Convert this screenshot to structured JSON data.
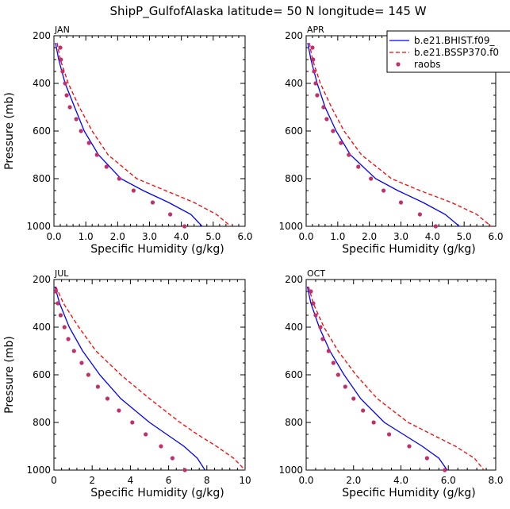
{
  "title": "ShipP_GulfofAlaska  latitude= 50 N longitude= 145 W",
  "legend": {
    "entries": [
      {
        "label": "b.e21.BHIST.f09_",
        "color": "#0000ff",
        "style": "solid"
      },
      {
        "label": "b.e21.BSSP370.f0",
        "color": "#ff0000",
        "style": "dashed"
      },
      {
        "label": "raobs",
        "color": "#c0306a",
        "style": "dot"
      }
    ]
  },
  "chart_data": [
    {
      "type": "line",
      "panel": "JAN",
      "xlabel": "Specific Humidity (g/kg)",
      "ylabel": "Pressure (mb)",
      "xlim": [
        0,
        6
      ],
      "ylim": [
        200,
        1000
      ],
      "y_inverted": true,
      "xticks": [
        "0.0",
        "1.0",
        "2.0",
        "3.0",
        "4.0",
        "5.0",
        "6.0"
      ],
      "xtick_values": [
        0,
        1,
        2,
        3,
        4,
        5,
        6
      ],
      "yticks": [
        "200",
        "400",
        "600",
        "800",
        "1000"
      ],
      "ytick_values": [
        200,
        400,
        600,
        800,
        1000
      ],
      "series": [
        {
          "name": "b.e21.BHIST.f09_",
          "p": [
            230,
            300,
            400,
            500,
            600,
            700,
            800,
            850,
            900,
            950,
            1000
          ],
          "q": [
            0.05,
            0.15,
            0.35,
            0.65,
            0.95,
            1.4,
            2.1,
            2.8,
            3.6,
            4.3,
            4.65
          ]
        },
        {
          "name": "b.e21.BSSP370.f0",
          "p": [
            230,
            300,
            400,
            500,
            600,
            700,
            800,
            850,
            900,
            950,
            1000
          ],
          "q": [
            0.1,
            0.2,
            0.45,
            0.8,
            1.2,
            1.7,
            2.6,
            3.5,
            4.4,
            5.1,
            5.55
          ]
        },
        {
          "name": "raobs",
          "p": [
            250,
            300,
            350,
            400,
            450,
            500,
            550,
            600,
            650,
            700,
            750,
            800,
            850,
            900,
            950,
            1000
          ],
          "q": [
            0.2,
            0.22,
            0.27,
            0.35,
            0.4,
            0.5,
            0.7,
            0.85,
            1.1,
            1.35,
            1.65,
            2.05,
            2.5,
            3.1,
            3.65,
            4.1
          ]
        }
      ]
    },
    {
      "type": "line",
      "panel": "APR",
      "xlabel": "Specific Humidity (g/kg)",
      "ylabel": "",
      "xlim": [
        0,
        6
      ],
      "ylim": [
        200,
        1000
      ],
      "y_inverted": true,
      "xticks": [
        "0.0",
        "1.0",
        "2.0",
        "3.0",
        "4.0",
        "5.0",
        "6.0"
      ],
      "xtick_values": [
        0,
        1,
        2,
        3,
        4,
        5,
        6
      ],
      "yticks": [
        "200",
        "400",
        "600",
        "800",
        "1000"
      ],
      "ytick_values": [
        200,
        400,
        600,
        800,
        1000
      ],
      "series": [
        {
          "name": "b.e21.BHIST.f09_",
          "p": [
            230,
            300,
            400,
            500,
            600,
            700,
            800,
            850,
            900,
            950,
            1000
          ],
          "q": [
            0.05,
            0.15,
            0.35,
            0.6,
            0.95,
            1.4,
            2.2,
            2.9,
            3.7,
            4.4,
            4.85
          ]
        },
        {
          "name": "b.e21.BSSP370.f0",
          "p": [
            230,
            300,
            400,
            500,
            600,
            700,
            800,
            850,
            900,
            950,
            1000
          ],
          "q": [
            0.1,
            0.2,
            0.45,
            0.8,
            1.2,
            1.75,
            2.7,
            3.6,
            4.6,
            5.4,
            5.85
          ]
        },
        {
          "name": "raobs",
          "p": [
            250,
            300,
            350,
            400,
            450,
            500,
            550,
            600,
            650,
            700,
            750,
            800,
            850,
            900,
            950,
            1000
          ],
          "q": [
            0.2,
            0.22,
            0.25,
            0.3,
            0.35,
            0.55,
            0.65,
            0.85,
            1.1,
            1.35,
            1.65,
            2.05,
            2.45,
            3.0,
            3.6,
            4.1
          ]
        }
      ]
    },
    {
      "type": "line",
      "panel": "JUL",
      "xlabel": "Specific Humidity (g/kg)",
      "ylabel": "Pressure (mb)",
      "xlim": [
        0,
        10
      ],
      "ylim": [
        200,
        1000
      ],
      "y_inverted": true,
      "xticks": [
        "0",
        "2",
        "4",
        "6",
        "8",
        "10"
      ],
      "xtick_values": [
        0,
        2,
        4,
        6,
        8,
        10
      ],
      "yticks": [
        "200",
        "400",
        "600",
        "800",
        "1000"
      ],
      "ytick_values": [
        200,
        400,
        600,
        800,
        1000
      ],
      "series": [
        {
          "name": "b.e21.BHIST.f09_",
          "p": [
            230,
            300,
            400,
            500,
            600,
            700,
            800,
            850,
            900,
            950,
            1000
          ],
          "q": [
            0.05,
            0.3,
            0.8,
            1.5,
            2.4,
            3.5,
            5.0,
            5.9,
            6.8,
            7.5,
            7.9
          ]
        },
        {
          "name": "b.e21.BSSP370.f0",
          "p": [
            230,
            300,
            400,
            500,
            600,
            700,
            800,
            850,
            900,
            950,
            1000
          ],
          "q": [
            0.1,
            0.5,
            1.3,
            2.2,
            3.5,
            5.0,
            6.6,
            7.5,
            8.5,
            9.4,
            10.0
          ]
        },
        {
          "name": "raobs",
          "p": [
            250,
            300,
            350,
            400,
            450,
            500,
            550,
            600,
            650,
            700,
            750,
            800,
            850,
            900,
            950,
            1000
          ],
          "q": [
            0.1,
            0.2,
            0.35,
            0.55,
            0.75,
            1.05,
            1.45,
            1.8,
            2.3,
            2.8,
            3.4,
            4.1,
            4.8,
            5.6,
            6.2,
            6.85
          ]
        }
      ]
    },
    {
      "type": "line",
      "panel": "OCT",
      "xlabel": "Specific Humidity (g/kg)",
      "ylabel": "",
      "xlim": [
        0,
        8
      ],
      "ylim": [
        200,
        1000
      ],
      "y_inverted": true,
      "xticks": [
        "0.0",
        "2.0",
        "4.0",
        "6.0",
        "8.0"
      ],
      "xtick_values": [
        0,
        2,
        4,
        6,
        8
      ],
      "yticks": [
        "200",
        "400",
        "600",
        "800",
        "1000"
      ],
      "ytick_values": [
        200,
        400,
        600,
        800,
        1000
      ],
      "series": [
        {
          "name": "b.e21.BHIST.f09_",
          "p": [
            230,
            300,
            400,
            500,
            600,
            700,
            800,
            850,
            900,
            950,
            1000
          ],
          "q": [
            0.05,
            0.2,
            0.55,
            1.0,
            1.6,
            2.3,
            3.3,
            4.1,
            4.9,
            5.6,
            5.95
          ]
        },
        {
          "name": "b.e21.BSSP370.f0",
          "p": [
            230,
            300,
            400,
            500,
            600,
            700,
            800,
            850,
            900,
            950,
            1000
          ],
          "q": [
            0.1,
            0.3,
            0.75,
            1.35,
            2.1,
            3.0,
            4.3,
            5.3,
            6.3,
            7.1,
            7.5
          ]
        },
        {
          "name": "raobs",
          "p": [
            250,
            300,
            350,
            400,
            450,
            500,
            550,
            600,
            650,
            700,
            750,
            800,
            850,
            900,
            950,
            1000
          ],
          "q": [
            0.2,
            0.3,
            0.4,
            0.6,
            0.7,
            0.95,
            1.15,
            1.35,
            1.65,
            2.0,
            2.4,
            2.85,
            3.5,
            4.35,
            5.1,
            5.85
          ]
        }
      ]
    }
  ]
}
